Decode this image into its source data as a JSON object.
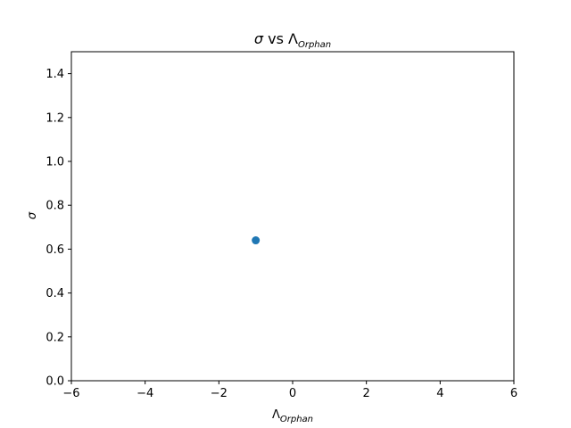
{
  "chart_data": {
    "type": "scatter",
    "title": {
      "symbol": "σ",
      "middle": " vs ",
      "symbol2": "Λ",
      "subscript": "Orphan"
    },
    "xlabel": {
      "symbol": "Λ",
      "subscript": "Orphan"
    },
    "ylabel": "σ",
    "xlim": [
      -6,
      6
    ],
    "ylim": [
      0,
      1.5
    ],
    "xticks": [
      -6,
      -4,
      -2,
      0,
      2,
      4,
      6
    ],
    "xtick_labels": [
      "−6",
      "−4",
      "−2",
      "0",
      "2",
      "4",
      "6"
    ],
    "yticks": [
      0,
      0.2,
      0.4,
      0.6,
      0.8,
      1.0,
      1.2,
      1.4
    ],
    "ytick_labels": [
      "0.0",
      "0.2",
      "0.4",
      "0.6",
      "0.8",
      "1.0",
      "1.2",
      "1.4"
    ],
    "grid": false,
    "points": [
      {
        "x": -1.0,
        "y": 0.64
      }
    ],
    "marker_color": "#1f77b4"
  }
}
